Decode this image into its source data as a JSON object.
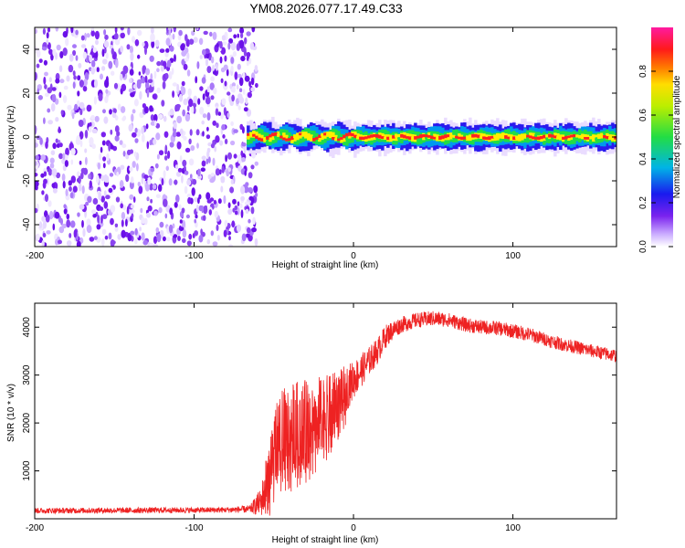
{
  "figure": {
    "title": "YM08.2026.077.17.49.C33"
  },
  "colors": {
    "snr_line": "#ee2222",
    "band_core": "#ff2222",
    "band_inner": "#ffee00",
    "band_mid": "#22dd44",
    "band_outer": "#0099ee",
    "band_edge": "#2a1aee",
    "noise": "#7a22ee"
  },
  "chart_data": [
    {
      "type": "heatmap",
      "title": "YM08.2026.077.17.49.C33",
      "xlabel": "Height of straight line (km)",
      "ylabel": "Frequency (Hz)",
      "xlim": [
        -200,
        165
      ],
      "ylim": [
        -50,
        50
      ],
      "xticks": [
        -200,
        -100,
        0,
        100
      ],
      "xtick_labels": [
        "-200",
        "-100",
        "0",
        "100"
      ],
      "yticks": [
        -40,
        -20,
        0,
        20,
        40
      ],
      "ytick_labels": [
        "-40",
        "-20",
        "0",
        "20",
        "40"
      ],
      "colorbar": {
        "label": "Normalized spectral amplitude",
        "range": [
          0.0,
          1.0
        ],
        "ticks": [
          0.0,
          0.2,
          0.4,
          0.6,
          0.8
        ],
        "tick_labels": [
          "0.0",
          "0.2",
          "0.4",
          "0.6",
          "0.8"
        ]
      },
      "description_regions": [
        {
          "name": "broadband noise",
          "x": [
            -200,
            -63
          ],
          "freq": [
            -50,
            50
          ],
          "amplitude": 0.3
        },
        {
          "name": "narrow signal band",
          "x": [
            -67,
            165
          ],
          "freq_center": 0,
          "freq_halfwidth": 4,
          "peak_amplitude": 1.0
        }
      ]
    },
    {
      "type": "line",
      "xlabel": "Height of straight line (km)",
      "ylabel": "SNR (10 * v/v)",
      "xlim": [
        -200,
        165
      ],
      "ylim": [
        0,
        4500
      ],
      "xticks": [
        -200,
        -100,
        0,
        100
      ],
      "xtick_labels": [
        "-200",
        "-100",
        "0",
        "100"
      ],
      "yticks": [
        1000,
        2000,
        3000,
        4000
      ],
      "ytick_labels": [
        "1000",
        "2000",
        "3000",
        "4000"
      ],
      "series": [
        {
          "name": "SNR",
          "x": [
            -200,
            -180,
            -160,
            -140,
            -120,
            -100,
            -80,
            -65,
            -58,
            -54,
            -50,
            -45,
            -40,
            -35,
            -30,
            -25,
            -20,
            -15,
            -10,
            -5,
            0,
            5,
            10,
            15,
            20,
            25,
            30,
            40,
            50,
            60,
            70,
            80,
            90,
            100,
            110,
            120,
            130,
            140,
            150,
            165
          ],
          "values": [
            170,
            170,
            175,
            175,
            180,
            180,
            185,
            200,
            350,
            800,
            1500,
            1800,
            1900,
            2000,
            2000,
            2100,
            2200,
            2300,
            2500,
            2700,
            2900,
            3100,
            3300,
            3500,
            3800,
            3950,
            4050,
            4150,
            4180,
            4150,
            4050,
            4000,
            3980,
            3920,
            3850,
            3750,
            3650,
            3580,
            3500,
            3400
          ],
          "jitter": [
            60,
            60,
            60,
            60,
            60,
            60,
            60,
            80,
            300,
            700,
            900,
            900,
            900,
            900,
            900,
            850,
            800,
            700,
            600,
            500,
            400,
            350,
            300,
            280,
            250,
            200,
            170,
            160,
            160,
            150,
            150,
            150,
            150,
            150,
            150,
            140,
            140,
            140,
            140,
            140
          ]
        }
      ]
    }
  ]
}
